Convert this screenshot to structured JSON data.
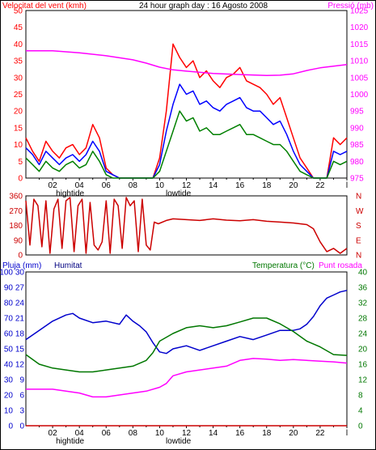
{
  "chart_data": [
    {
      "type": "line",
      "panel": "wind",
      "title": "24 hour graph day : 16 Agosto 2008",
      "left_label": "Velocitat del vent (kmh)",
      "right_label": "Pressió (mb)",
      "left_ticks": [
        "0",
        "5",
        "10",
        "15",
        "20",
        "25",
        "30",
        "35",
        "40",
        "45",
        "50"
      ],
      "right_ticks": [
        "975",
        "980",
        "985",
        "990",
        "995",
        "1000",
        "1005",
        "1010",
        "1015",
        "1020",
        "1025"
      ],
      "ylim_left": [
        0,
        50
      ],
      "ylim_right": [
        975,
        1025
      ],
      "x_ticks": [
        "02",
        "04",
        "06",
        "08",
        "10",
        "12",
        "14",
        "16",
        "18",
        "20",
        "22",
        "l"
      ],
      "tide_labels": [
        {
          "text": "hightide",
          "hour": 3.3
        },
        {
          "text": "lowtide",
          "hour": 11.4
        }
      ],
      "grid": false,
      "series": [
        {
          "color": "#ff0000",
          "x": [
            0,
            0.5,
            1,
            1.5,
            2,
            2.5,
            3,
            3.5,
            4,
            4.5,
            5,
            5.5,
            6,
            6.5,
            7,
            7.5,
            8,
            8.5,
            9,
            9.5,
            10,
            10.5,
            11,
            11.5,
            12,
            12.5,
            13,
            13.5,
            14,
            14.5,
            15,
            15.5,
            16,
            16.5,
            17,
            17.5,
            18,
            18.5,
            19,
            19.5,
            20,
            20.5,
            21,
            21.5,
            22,
            22.5,
            23,
            23.5,
            24
          ],
          "y": [
            12,
            8,
            5,
            11,
            8,
            6,
            9,
            10,
            7,
            9,
            16,
            12,
            3,
            1,
            0,
            0,
            0,
            0,
            0,
            0,
            6,
            20,
            40,
            36,
            33,
            35,
            30,
            32,
            29,
            27,
            30,
            31,
            33,
            29,
            28,
            27,
            25,
            22,
            24,
            18,
            12,
            6,
            3,
            0,
            0,
            0,
            12,
            10,
            12
          ]
        },
        {
          "color": "#0000ff",
          "x": [
            0,
            0.5,
            1,
            1.5,
            2,
            2.5,
            3,
            3.5,
            4,
            4.5,
            5,
            5.5,
            6,
            6.5,
            7,
            7.5,
            8,
            8.5,
            9,
            9.5,
            10,
            10.5,
            11,
            11.5,
            12,
            12.5,
            13,
            13.5,
            14,
            14.5,
            15,
            15.5,
            16,
            16.5,
            17,
            17.5,
            18,
            18.5,
            19,
            19.5,
            20,
            20.5,
            21,
            21.5,
            22,
            22.5,
            23,
            23.5,
            24
          ],
          "y": [
            9,
            7,
            4,
            8,
            6,
            4,
            6,
            7,
            5,
            7,
            11,
            8,
            2,
            1,
            0,
            0,
            0,
            0,
            0,
            0,
            4,
            14,
            22,
            28,
            25,
            26,
            22,
            23,
            21,
            20,
            22,
            23,
            24,
            21,
            20,
            20,
            18,
            16,
            17,
            13,
            8,
            4,
            2,
            0,
            0,
            0,
            8,
            7,
            8
          ]
        },
        {
          "color": "#008000",
          "x": [
            0,
            0.5,
            1,
            1.5,
            2,
            2.5,
            3,
            3.5,
            4,
            4.5,
            5,
            5.5,
            6,
            6.5,
            7,
            7.5,
            8,
            8.5,
            9,
            9.5,
            10,
            10.5,
            11,
            11.5,
            12,
            12.5,
            13,
            13.5,
            14,
            14.5,
            15,
            15.5,
            16,
            16.5,
            17,
            17.5,
            18,
            18.5,
            19,
            19.5,
            20,
            20.5,
            21,
            21.5,
            22,
            22.5,
            23,
            23.5,
            24
          ],
          "y": [
            6,
            4,
            2,
            5,
            3,
            2,
            4,
            5,
            3,
            4,
            8,
            5,
            1,
            0,
            0,
            0,
            0,
            0,
            0,
            0,
            2,
            8,
            14,
            20,
            17,
            18,
            14,
            15,
            13,
            13,
            14,
            15,
            16,
            13,
            13,
            12,
            11,
            10,
            10,
            8,
            5,
            2,
            1,
            0,
            0,
            0,
            5,
            4,
            5
          ]
        },
        {
          "color": "#ff00ff",
          "axis": "right",
          "x": [
            0,
            2,
            4,
            6,
            8,
            9,
            10,
            11,
            12,
            14,
            16,
            18,
            19,
            20,
            21,
            22,
            23,
            24
          ],
          "y": [
            1013,
            1013,
            1012.4,
            1011.5,
            1010.3,
            1009.3,
            1008.1,
            1007.3,
            1006.9,
            1006.2,
            1005.9,
            1005.6,
            1005.7,
            1006.1,
            1007.1,
            1007.9,
            1008.4,
            1008.9
          ]
        }
      ]
    },
    {
      "type": "line",
      "panel": "direction",
      "left_ticks": [
        "0",
        "90",
        "180",
        "270",
        "360"
      ],
      "right_ticks": [
        "N",
        "E",
        "S",
        "W",
        "N"
      ],
      "ylim_left": [
        0,
        360
      ],
      "grid": false,
      "series": [
        {
          "color": "#cc0000",
          "x": [
            0,
            0.3,
            0.6,
            0.9,
            1.2,
            1.5,
            1.8,
            2.1,
            2.4,
            2.7,
            3.0,
            3.3,
            3.6,
            3.9,
            4.2,
            4.5,
            4.8,
            5.1,
            5.4,
            5.7,
            6.0,
            6.3,
            6.6,
            6.9,
            7.2,
            7.5,
            7.8,
            8.1,
            8.4,
            8.7,
            9.0,
            9.3,
            9.6,
            9.9,
            10.5,
            11,
            12,
            13,
            14,
            15,
            16,
            17,
            18,
            19,
            20,
            21,
            21.5,
            22,
            22.5,
            23,
            23.5,
            24
          ],
          "y": [
            330,
            60,
            340,
            300,
            50,
            330,
            10,
            280,
            340,
            40,
            330,
            350,
            20,
            300,
            340,
            10,
            320,
            60,
            30,
            80,
            330,
            10,
            340,
            300,
            40,
            350,
            300,
            330,
            20,
            340,
            60,
            30,
            200,
            190,
            210,
            220,
            215,
            210,
            220,
            212,
            208,
            215,
            205,
            200,
            195,
            185,
            160,
            80,
            20,
            40,
            10,
            40
          ]
        }
      ]
    },
    {
      "type": "line",
      "panel": "humidity-temperature",
      "left_label_1": "Pluja (mm)",
      "left_label_2": "Humitat",
      "right_label_1": "Temperatura (°C)",
      "right_label_2": "Punt rosada",
      "left_ticks_1": [
        "0",
        "3",
        "6",
        "9",
        "12",
        "15",
        "18",
        "21",
        "24",
        "27",
        "30"
      ],
      "left_ticks_2": [
        "0",
        "10",
        "20",
        "30",
        "40",
        "50",
        "60",
        "70",
        "80",
        "90",
        "100"
      ],
      "right_ticks": [
        "0",
        "4",
        "8",
        "12",
        "16",
        "20",
        "24",
        "28",
        "32",
        "36",
        "40"
      ],
      "ylim_left": [
        0,
        100
      ],
      "ylim_right": [
        0,
        40
      ],
      "grid": false,
      "series": [
        {
          "color": "#0000cc",
          "axis": "left",
          "x": [
            0,
            1,
            2,
            3,
            3.5,
            4,
            5,
            6,
            7,
            7.5,
            8,
            8.5,
            9,
            9.5,
            10,
            10.5,
            11,
            12,
            13,
            14,
            15,
            16,
            17,
            18,
            19,
            20,
            20.5,
            21,
            21.5,
            22,
            22.5,
            23,
            23.5,
            24
          ],
          "y": [
            56,
            62,
            68,
            72,
            73,
            70,
            67,
            68,
            66,
            72,
            68,
            65,
            61,
            54,
            48,
            47,
            50,
            52,
            49,
            52,
            55,
            58,
            56,
            59,
            62,
            62,
            63,
            66,
            71,
            78,
            83,
            85,
            87,
            88
          ]
        },
        {
          "color": "#007700",
          "axis": "right",
          "x": [
            0,
            1,
            2,
            3,
            4,
            5,
            6,
            7,
            8,
            9,
            9.5,
            10,
            11,
            12,
            13,
            14,
            15,
            16,
            17,
            18,
            19,
            20,
            21,
            22,
            23,
            24
          ],
          "y": [
            18.5,
            16,
            15,
            14.5,
            14,
            14,
            14.5,
            15,
            15.5,
            17,
            19,
            22,
            24,
            25.5,
            26,
            25.5,
            26,
            27,
            28,
            28,
            26.5,
            24.5,
            22,
            20.5,
            18.5,
            18.3
          ]
        },
        {
          "color": "#ff00ff",
          "axis": "right",
          "x": [
            0,
            1,
            2,
            3,
            4,
            5,
            6,
            7,
            8,
            9,
            10,
            10.5,
            11,
            12,
            13,
            14,
            15,
            16,
            17,
            18,
            19,
            20,
            21,
            22,
            23,
            24
          ],
          "y": [
            9.5,
            9.5,
            9.5,
            9,
            8.5,
            7.5,
            7.5,
            8,
            8.5,
            9,
            10,
            11,
            13,
            14,
            14.5,
            15,
            15.5,
            17,
            17.5,
            17.3,
            17,
            17.2,
            17,
            16.8,
            16.6,
            16.3
          ]
        },
        {
          "color": "#cc0000",
          "axis": "left",
          "x": [
            0,
            24
          ],
          "y": [
            0,
            0
          ]
        }
      ],
      "x_ticks": [
        "02",
        "04",
        "06",
        "08",
        "10",
        "12",
        "14",
        "16",
        "18",
        "20",
        "22",
        "l"
      ],
      "tide_labels": [
        {
          "text": "hightide",
          "hour": 3.3
        },
        {
          "text": "lowtide",
          "hour": 11.4
        }
      ]
    }
  ]
}
